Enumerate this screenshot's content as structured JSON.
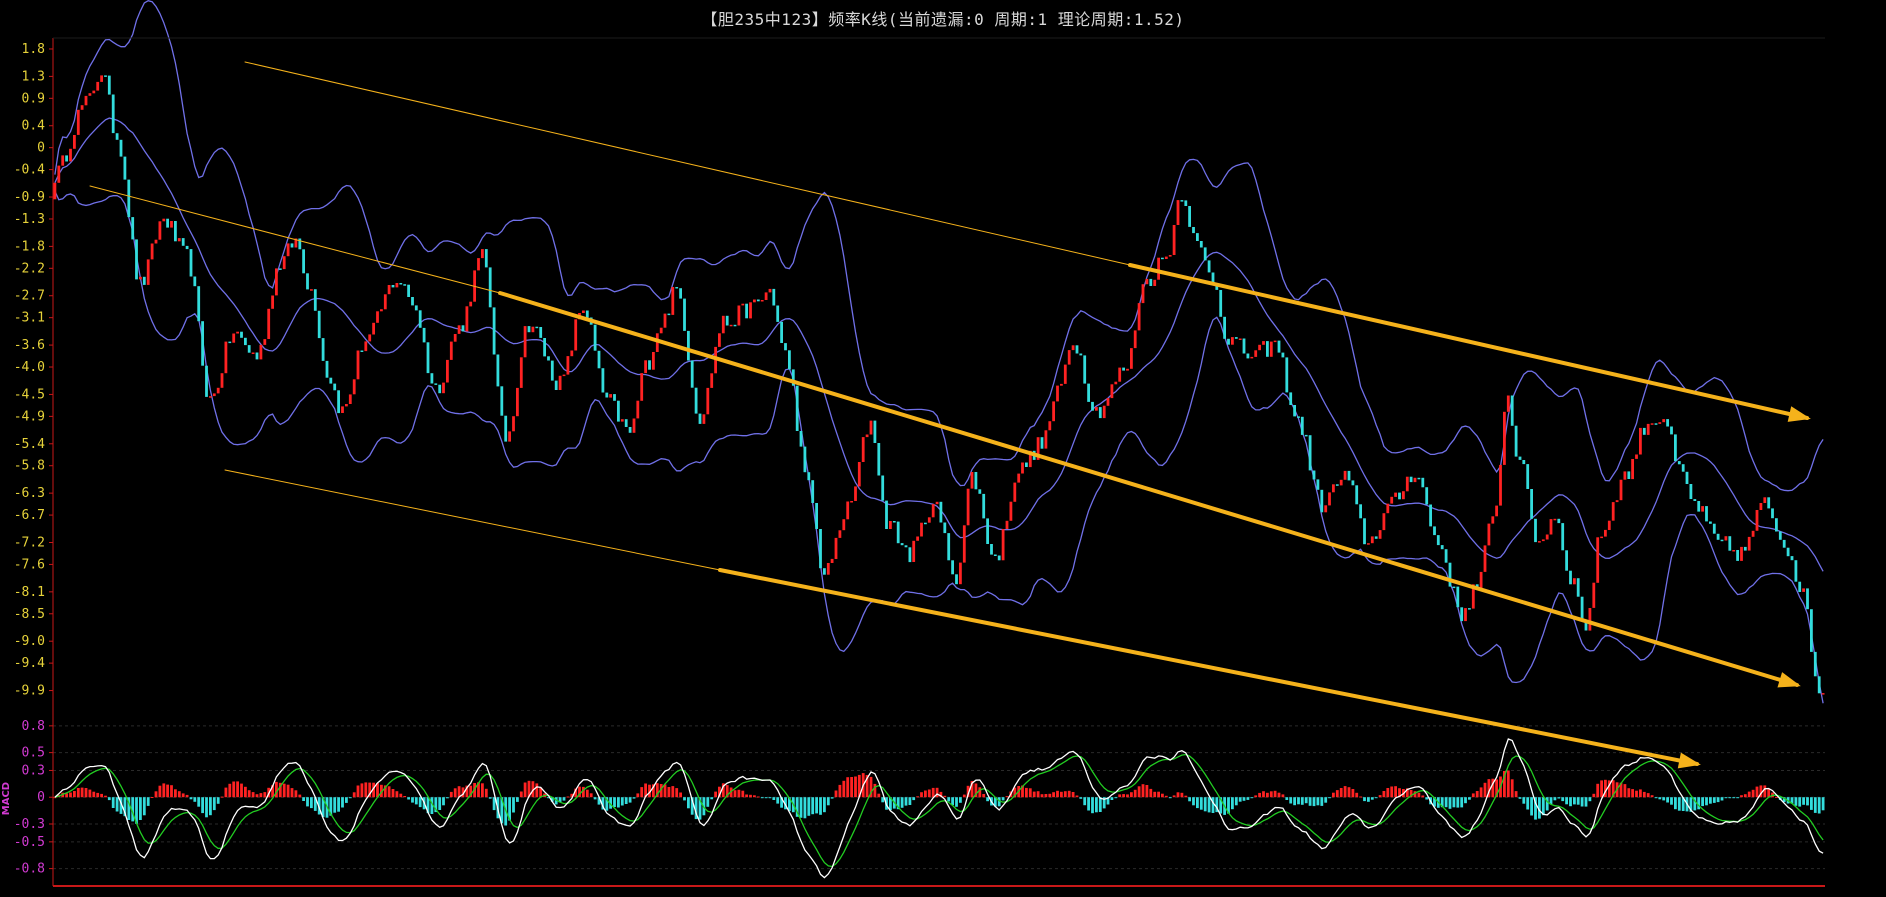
{
  "chart_data": [
    {
      "type": "candlestick",
      "title": "【胆235中123】频率K线(当前遗漏:0 周期:1 理论周期:1.52)",
      "yticks": [
        "1.8",
        "1.3",
        "0.9",
        "0.4",
        "0",
        "-0.4",
        "-0.9",
        "-1.3",
        "-1.8",
        "-2.2",
        "-2.7",
        "-3.1",
        "-3.6",
        "-4.0",
        "-4.5",
        "-4.9",
        "-5.4",
        "-5.8",
        "-6.3",
        "-6.7",
        "-7.2",
        "-7.6",
        "-8.1",
        "-8.5",
        "-9.0",
        "-9.4",
        "-9.9"
      ],
      "ylim": [
        -10.2,
        2.0
      ],
      "close_path": [
        [
          0,
          -0.5
        ],
        [
          8,
          0.8
        ],
        [
          12,
          1.4
        ],
        [
          16,
          0.2
        ],
        [
          22,
          -2.5
        ],
        [
          28,
          -1.3
        ],
        [
          34,
          -2.0
        ],
        [
          40,
          -4.6
        ],
        [
          46,
          -3.4
        ],
        [
          52,
          -3.8
        ],
        [
          58,
          -2.1
        ],
        [
          62,
          -1.7
        ],
        [
          66,
          -2.6
        ],
        [
          70,
          -4.1
        ],
        [
          74,
          -4.8
        ],
        [
          80,
          -3.5
        ],
        [
          88,
          -2.4
        ],
        [
          92,
          -2.8
        ],
        [
          98,
          -4.4
        ],
        [
          104,
          -3.3
        ],
        [
          110,
          -2.0
        ],
        [
          116,
          -5.3
        ],
        [
          122,
          -3.2
        ],
        [
          130,
          -4.3
        ],
        [
          136,
          -2.9
        ],
        [
          142,
          -4.6
        ],
        [
          148,
          -5.2
        ],
        [
          152,
          -4.0
        ],
        [
          156,
          -3.2
        ],
        [
          160,
          -2.6
        ],
        [
          166,
          -4.9
        ],
        [
          172,
          -3.2
        ],
        [
          180,
          -2.9
        ],
        [
          184,
          -2.6
        ],
        [
          188,
          -3.8
        ],
        [
          194,
          -6.2
        ],
        [
          198,
          -7.8
        ],
        [
          204,
          -6.6
        ],
        [
          210,
          -5.0
        ],
        [
          214,
          -6.8
        ],
        [
          220,
          -7.4
        ],
        [
          226,
          -6.5
        ],
        [
          232,
          -7.8
        ],
        [
          236,
          -6.0
        ],
        [
          242,
          -7.5
        ],
        [
          248,
          -5.9
        ],
        [
          254,
          -5.4
        ],
        [
          258,
          -4.5
        ],
        [
          262,
          -3.5
        ],
        [
          268,
          -4.8
        ],
        [
          276,
          -4.0
        ],
        [
          280,
          -2.5
        ],
        [
          286,
          -2.0
        ],
        [
          290,
          -0.8
        ],
        [
          294,
          -1.8
        ],
        [
          298,
          -2.4
        ],
        [
          302,
          -3.5
        ],
        [
          308,
          -3.8
        ],
        [
          314,
          -3.6
        ],
        [
          320,
          -5.0
        ],
        [
          326,
          -6.5
        ],
        [
          332,
          -6.0
        ],
        [
          338,
          -7.2
        ],
        [
          344,
          -6.5
        ],
        [
          350,
          -5.9
        ],
        [
          356,
          -7.2
        ],
        [
          362,
          -8.5
        ],
        [
          366,
          -8.0
        ],
        [
          370,
          -6.8
        ],
        [
          374,
          -4.5
        ],
        [
          376,
          -5.5
        ],
        [
          382,
          -7.2
        ],
        [
          386,
          -6.7
        ],
        [
          390,
          -7.8
        ],
        [
          394,
          -8.7
        ],
        [
          398,
          -7.0
        ],
        [
          404,
          -6.0
        ],
        [
          410,
          -5.0
        ],
        [
          414,
          -4.9
        ],
        [
          418,
          -5.9
        ],
        [
          422,
          -6.5
        ],
        [
          428,
          -7.2
        ],
        [
          434,
          -7.4
        ],
        [
          440,
          -6.5
        ],
        [
          446,
          -7.3
        ],
        [
          450,
          -8.2
        ],
        [
          454,
          -9.9
        ]
      ]
    },
    {
      "type": "line",
      "ylabel": "MACD",
      "yticks": [
        "0.8",
        "0.5",
        "0.3",
        "0",
        "-0.3",
        "-0.5",
        "-0.8"
      ],
      "ylim": [
        -0.95,
        1.0
      ]
    }
  ],
  "colors": {
    "up": "#ff2222",
    "down": "#33dddd",
    "band": "#7070e8",
    "arrow": "#f5b21b",
    "dif": "#ffffff",
    "dea": "#22cc22",
    "axis": "#c81818",
    "ytick": "#e6d23a",
    "macd_tick": "#d23ad2"
  }
}
